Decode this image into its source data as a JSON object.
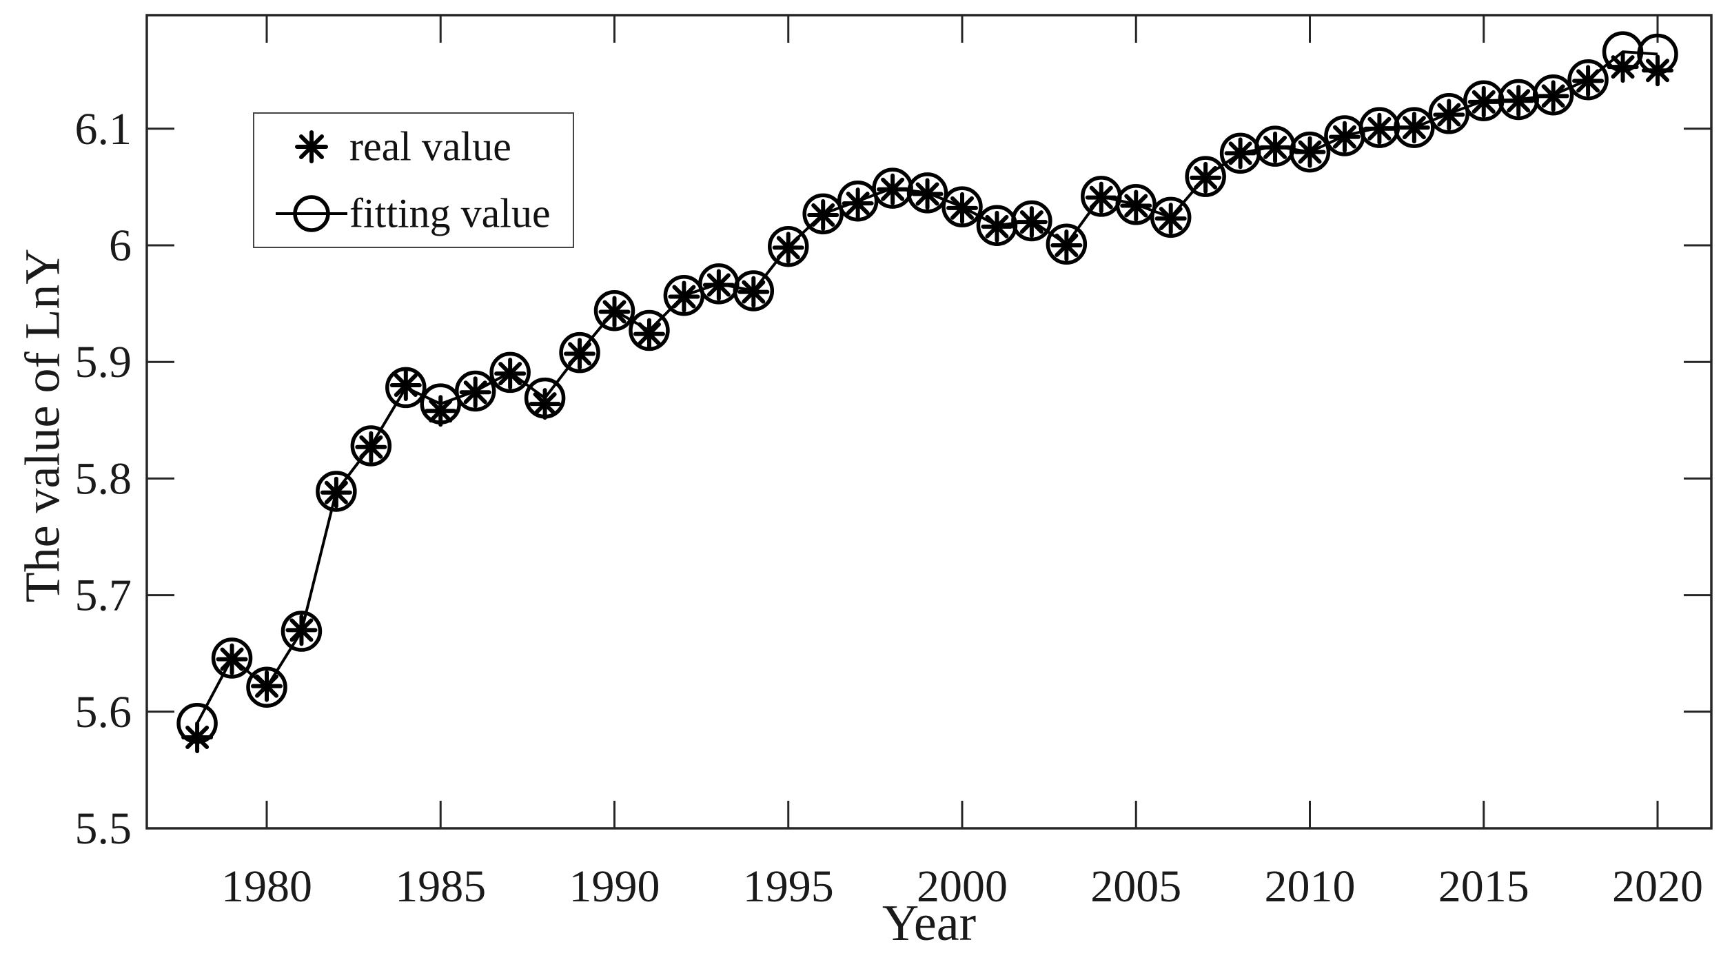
{
  "figure": {
    "background_color": "#ffffff",
    "axis_color": "#262626",
    "data_color": "#000000"
  },
  "chart_data": {
    "type": "line",
    "title": "",
    "xlabel": "Year",
    "ylabel": "The value of LnY",
    "grid": false,
    "xlim": [
      1976.5,
      2021.5
    ],
    "ylim": [
      5.5,
      6.2
    ],
    "x_ticks": [
      1980,
      1985,
      1990,
      1995,
      2000,
      2005,
      2010,
      2015,
      2020
    ],
    "x_tick_labels": [
      "1980",
      "1985",
      "1990",
      "1995",
      "2000",
      "2005",
      "2010",
      "2015",
      "2020"
    ],
    "y_ticks": [
      5.5,
      5.6,
      5.7,
      5.8,
      5.9,
      6.0,
      6.1
    ],
    "y_tick_labels": [
      "5.5",
      "5.6",
      "5.7",
      "5.8",
      "5.9",
      "6",
      "6.1"
    ],
    "legend": {
      "position": "upper-left-inside",
      "entries": [
        {
          "label": "real value",
          "marker": "asterisk",
          "line": false
        },
        {
          "label": "fitting value",
          "marker": "open-circle",
          "line": true
        }
      ]
    },
    "x": [
      1978,
      1979,
      1980,
      1981,
      1982,
      1983,
      1984,
      1985,
      1986,
      1987,
      1988,
      1989,
      1990,
      1991,
      1992,
      1993,
      1994,
      1995,
      1996,
      1997,
      1998,
      1999,
      2000,
      2001,
      2002,
      2003,
      2004,
      2005,
      2006,
      2007,
      2008,
      2009,
      2010,
      2011,
      2012,
      2013,
      2014,
      2015,
      2016,
      2017,
      2018,
      2019,
      2020
    ],
    "series": [
      {
        "name": "real value",
        "marker": "asterisk",
        "line": false,
        "values": [
          5.578,
          5.645,
          5.622,
          5.67,
          5.788,
          5.827,
          5.88,
          5.858,
          5.874,
          5.89,
          5.864,
          5.907,
          5.943,
          5.924,
          5.956,
          5.966,
          5.96,
          5.998,
          6.026,
          6.036,
          6.048,
          6.044,
          6.032,
          6.016,
          6.02,
          6.0,
          6.041,
          6.034,
          6.023,
          6.058,
          6.079,
          6.084,
          6.08,
          6.093,
          6.1,
          6.101,
          6.112,
          6.123,
          6.124,
          6.128,
          6.141,
          6.153,
          6.15
        ]
      },
      {
        "name": "fitting value",
        "marker": "open-circle",
        "line": true,
        "values": [
          5.59,
          5.646,
          5.621,
          5.669,
          5.789,
          5.828,
          5.878,
          5.864,
          5.875,
          5.891,
          5.869,
          5.908,
          5.944,
          5.927,
          5.957,
          5.967,
          5.961,
          5.999,
          6.027,
          6.038,
          6.049,
          6.045,
          6.033,
          6.017,
          6.021,
          6.001,
          6.042,
          6.035,
          6.024,
          6.059,
          6.079,
          6.085,
          6.08,
          6.094,
          6.101,
          6.101,
          6.113,
          6.124,
          6.125,
          6.129,
          6.142,
          6.166,
          6.164
        ]
      }
    ]
  }
}
